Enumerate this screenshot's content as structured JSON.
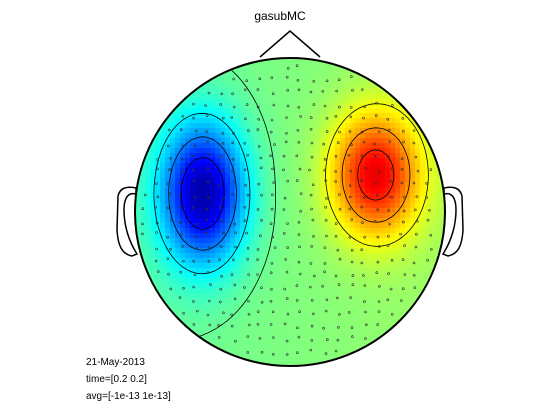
{
  "chart_data": {
    "type": "heatmap",
    "title": "gasubMC",
    "annotations": [
      "21-May-2013",
      "time=[0.2 0.2]",
      "avg=[-1e-13 1e-13]"
    ],
    "colormap": "jet",
    "color_range": [
      -1e-13,
      1e-13
    ],
    "sources": [
      {
        "name": "negative",
        "x": -0.56,
        "y": 0.12,
        "sx": 0.19,
        "sy": 0.32,
        "amp": -1.0
      },
      {
        "name": "positive",
        "x": 0.55,
        "y": 0.24,
        "sx": 0.2,
        "sy": 0.28,
        "amp": 0.85
      }
    ],
    "sensors": "scatter",
    "contours": true
  }
}
